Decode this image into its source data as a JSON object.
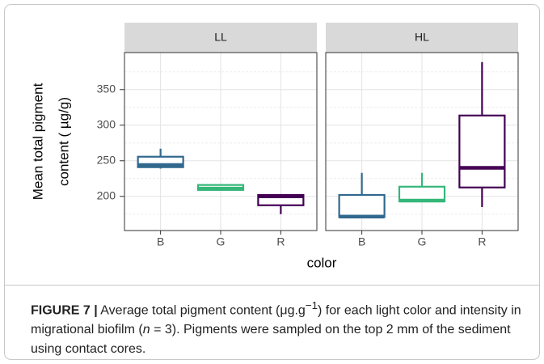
{
  "chart_data": {
    "type": "box",
    "ylabel": [
      "Mean total pigment",
      "content ( µg/g)"
    ],
    "xlabel": "color",
    "categories": [
      "B",
      "G",
      "R"
    ],
    "colors": [
      "#31688e",
      "#35b779",
      "#440154"
    ],
    "ylim": [
      152,
      402
    ],
    "yticks": [
      200,
      250,
      300,
      350
    ],
    "minor_yticks": [
      175,
      225,
      275,
      325,
      375
    ],
    "grid": true,
    "facets": [
      {
        "label": "LL",
        "whislo": [
          239,
          208,
          175
        ],
        "q1": [
          241,
          209,
          187.5
        ],
        "median": [
          244,
          211,
          200
        ],
        "q3": [
          255.7,
          216,
          202
        ],
        "whishi": [
          267,
          217,
          203
        ]
      },
      {
        "label": "HL",
        "whislo": [
          171,
          193,
          185
        ],
        "q1": [
          171,
          193,
          212.5
        ],
        "median": [
          171.6,
          194,
          240
        ],
        "q3": [
          202,
          213.6,
          313.6
        ],
        "whishi": [
          233,
          233,
          388.6
        ]
      }
    ]
  },
  "caption": {
    "label": "FIGURE 7 |",
    "parts": [
      "Average total pigment content (μg.g",
      "−1",
      ") for each light color and intensity in migrational biofilm (",
      "n",
      " = 3). Pigments were sampled on the top 2 mm of the sediment using contact cores."
    ]
  }
}
